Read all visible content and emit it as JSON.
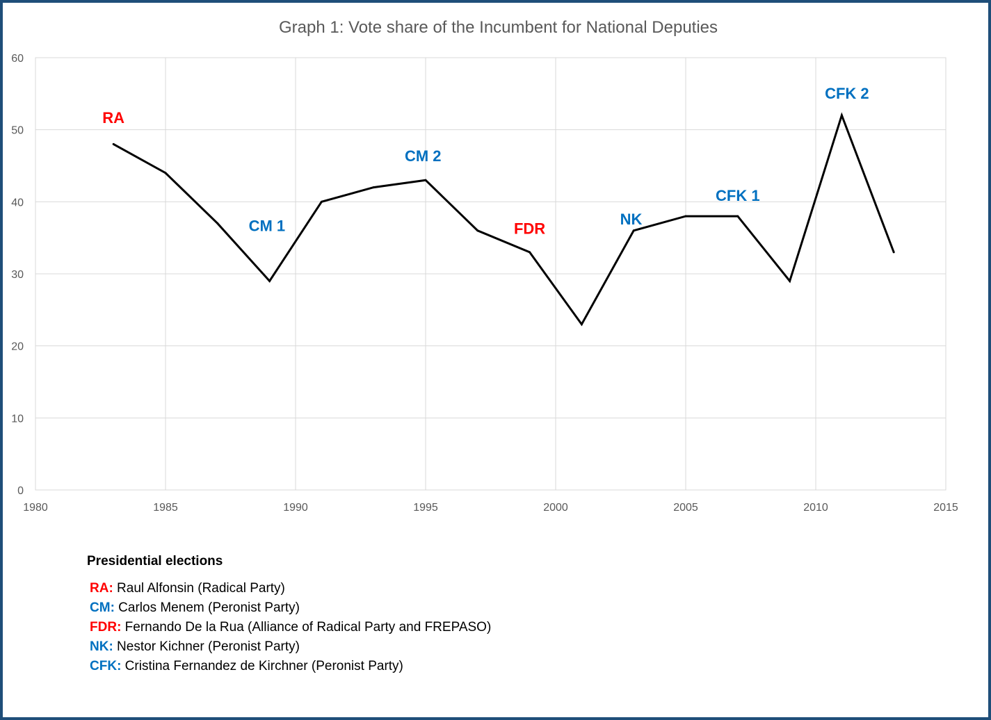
{
  "chart_data": {
    "type": "line",
    "title": "Graph 1: Vote share of the Incumbent for National Deputies",
    "xlabel": "",
    "ylabel": "",
    "xlim": [
      1980,
      2015
    ],
    "ylim": [
      0,
      60
    ],
    "xticks": [
      1980,
      1985,
      1990,
      1995,
      2000,
      2005,
      2010,
      2015
    ],
    "yticks": [
      0,
      10,
      20,
      30,
      40,
      50,
      60
    ],
    "grid": true,
    "series": [
      {
        "x": [
          1983,
          1985,
          1987,
          1989,
          1991,
          1993,
          1995,
          1997,
          1999,
          2001,
          2003,
          2005,
          2007,
          2009,
          2011,
          2013
        ],
        "values": [
          48,
          44,
          37,
          29,
          40,
          42,
          43,
          36,
          33,
          23,
          36,
          38,
          38,
          29,
          52,
          33
        ]
      }
    ],
    "annotations": [
      {
        "text": "RA",
        "x": 1983,
        "y": 51.7,
        "color": "#ff0000"
      },
      {
        "text": "CM 1",
        "x": 1988.9,
        "y": 36.7,
        "color": "#0070c0"
      },
      {
        "text": "CM 2",
        "x": 1994.9,
        "y": 46.4,
        "color": "#0070c0"
      },
      {
        "text": "FDR",
        "x": 1999,
        "y": 36.3,
        "color": "#ff0000"
      },
      {
        "text": "NK",
        "x": 2002.9,
        "y": 37.6,
        "color": "#0070c0"
      },
      {
        "text": "CFK 1",
        "x": 2007,
        "y": 40.9,
        "color": "#0070c0"
      },
      {
        "text": "CFK 2",
        "x": 2011.2,
        "y": 55.1,
        "color": "#0070c0"
      }
    ]
  },
  "legend": {
    "title": "Presidential elections",
    "items": [
      {
        "abbr": "RA",
        "sep": ":",
        "text": " Raul Alfonsin (Radical Party)",
        "color": "#ff0000"
      },
      {
        "abbr": "CM",
        "sep": ":",
        "text": " Carlos Menem (Peronist Party)",
        "color": "#0070c0"
      },
      {
        "abbr": "FDR",
        "sep": ":",
        "text": " Fernando De la Rua (Alliance of Radical Party and FREPASO)",
        "color": "#ff0000"
      },
      {
        "abbr": "NK",
        "sep": ":",
        "text": " Nestor Kichner (Peronist Party)",
        "color": "#0070c0"
      },
      {
        "abbr": "CFK",
        "sep": ":",
        "text": " Cristina Fernandez de Kirchner (Peronist Party)",
        "color": "#0070c0"
      }
    ]
  },
  "colors": {
    "line": "#000000",
    "grid": "#d9d9d9",
    "frame": "#1f4e79"
  }
}
